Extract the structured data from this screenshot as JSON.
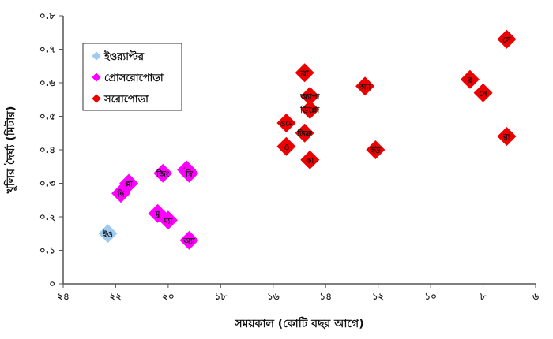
{
  "chart_data": {
    "type": "scatter",
    "xlabel": "সময়কাল (কোটি বছর আগে)",
    "ylabel": "খুলির দৈর্ঘ্য (মিটার)",
    "xlim": [
      24,
      6
    ],
    "ylim": [
      0,
      0.8
    ],
    "x_reversed": true,
    "x_ticks": [
      24,
      22,
      20,
      18,
      16,
      14,
      12,
      10,
      8,
      6
    ],
    "x_tick_labels": [
      "২৪",
      "২২",
      "২০",
      "১৮",
      "১৬",
      "১৪",
      "১২",
      "১০",
      "৮",
      "৬"
    ],
    "y_ticks": [
      0,
      0.1,
      0.2,
      0.3,
      0.4,
      0.5,
      0.6,
      0.7,
      0.8
    ],
    "y_tick_labels": [
      "০",
      "০.১",
      "০.২",
      "০.৩",
      "০.৪",
      "০.৫",
      "০.৬",
      "০.৭",
      "০.৮"
    ],
    "grid": false,
    "legend_position": "top-left",
    "series": [
      {
        "name": "ইওর‍্যাপ্টর",
        "color": "#9fcbf0",
        "points": [
          {
            "x": 22.3,
            "y": 0.15,
            "label": "ইও"
          }
        ]
      },
      {
        "name": "প্রোসরোপোডা",
        "color": "#ff00ff",
        "points": [
          {
            "x": 21.5,
            "y": 0.3,
            "label": "প্লা"
          },
          {
            "x": 21.8,
            "y": 0.27,
            "label": "দ্বি"
          },
          {
            "x": 20.2,
            "y": 0.33,
            "label": "জিং"
          },
          {
            "x": 19.3,
            "y": 0.34,
            "label": "সু"
          },
          {
            "x": 19.2,
            "y": 0.33,
            "label": "স্বি"
          },
          {
            "x": 20.4,
            "y": 0.21,
            "label": "মু"
          },
          {
            "x": 20.0,
            "y": 0.19,
            "label": "ম্যা"
          },
          {
            "x": 19.2,
            "y": 0.13,
            "label": "অ্যা"
          }
        ]
      },
      {
        "name": "সরোপোডা",
        "color": "#ee0000",
        "points": [
          {
            "x": 15.5,
            "y": 0.48,
            "label": "ওমে"
          },
          {
            "x": 15.5,
            "y": 0.41,
            "label": "ও"
          },
          {
            "x": 14.8,
            "y": 0.63,
            "label": "ব্রা"
          },
          {
            "x": 14.6,
            "y": 0.56,
            "label": "অ্যাপা"
          },
          {
            "x": 14.6,
            "y": 0.52,
            "label": "ডিপ্লো"
          },
          {
            "x": 14.8,
            "y": 0.45,
            "label": "ডিক্র"
          },
          {
            "x": 14.6,
            "y": 0.37,
            "label": "কা"
          },
          {
            "x": 12.5,
            "y": 0.59,
            "label": "অ্যা"
          },
          {
            "x": 12.1,
            "y": 0.4,
            "label": "ইউ"
          },
          {
            "x": 8.5,
            "y": 0.61,
            "label": "র"
          },
          {
            "x": 8.0,
            "y": 0.57,
            "label": "নে"
          },
          {
            "x": 7.1,
            "y": 0.73,
            "label": "সে"
          },
          {
            "x": 7.1,
            "y": 0.44,
            "label": "রা"
          }
        ]
      }
    ]
  }
}
